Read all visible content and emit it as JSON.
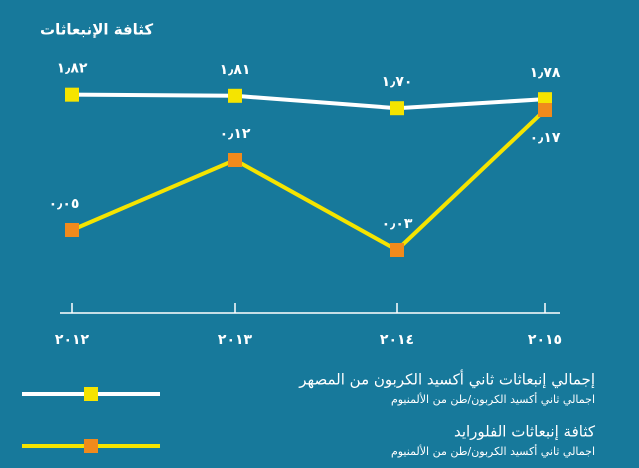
{
  "chart_data": {
    "type": "line",
    "title": "كثافة الإنبعاثات",
    "categories": [
      "٢٠١٢",
      "٢٠١٣",
      "٢٠١٤",
      "٢٠١٥"
    ],
    "ylim": [
      0,
      1.95
    ],
    "y2lim": [
      -0.02,
      0.2
    ],
    "background": "#17799b",
    "series": [
      {
        "name": "إجمالي إنبعاثات ثاني أكسيد الكربون من المصهر",
        "units": "اجمالي ثاني أكسيد الكربون/طن من الألمنيوم",
        "color": "#ffffff",
        "marker_color": "#f5e400",
        "values": [
          1.82,
          1.81,
          1.7,
          1.78
        ],
        "value_labels": [
          "١٫٨٢",
          "١٫٨١",
          "١٫٧٠",
          "١٫٧٨"
        ]
      },
      {
        "name": "كثافة إنبعاثات الفلورايد",
        "units": "اجمالي ثاني أكسيد الكربون/طن من الألمنيوم",
        "color": "#f5e400",
        "marker_color": "#f08a1c",
        "axis": "y2",
        "values": [
          0.05,
          0.12,
          0.03,
          0.17
        ],
        "value_labels": [
          "٠٫٠٥",
          "٠٫١٢",
          "٠٫٠٣",
          "٠٫١٧"
        ]
      }
    ]
  }
}
